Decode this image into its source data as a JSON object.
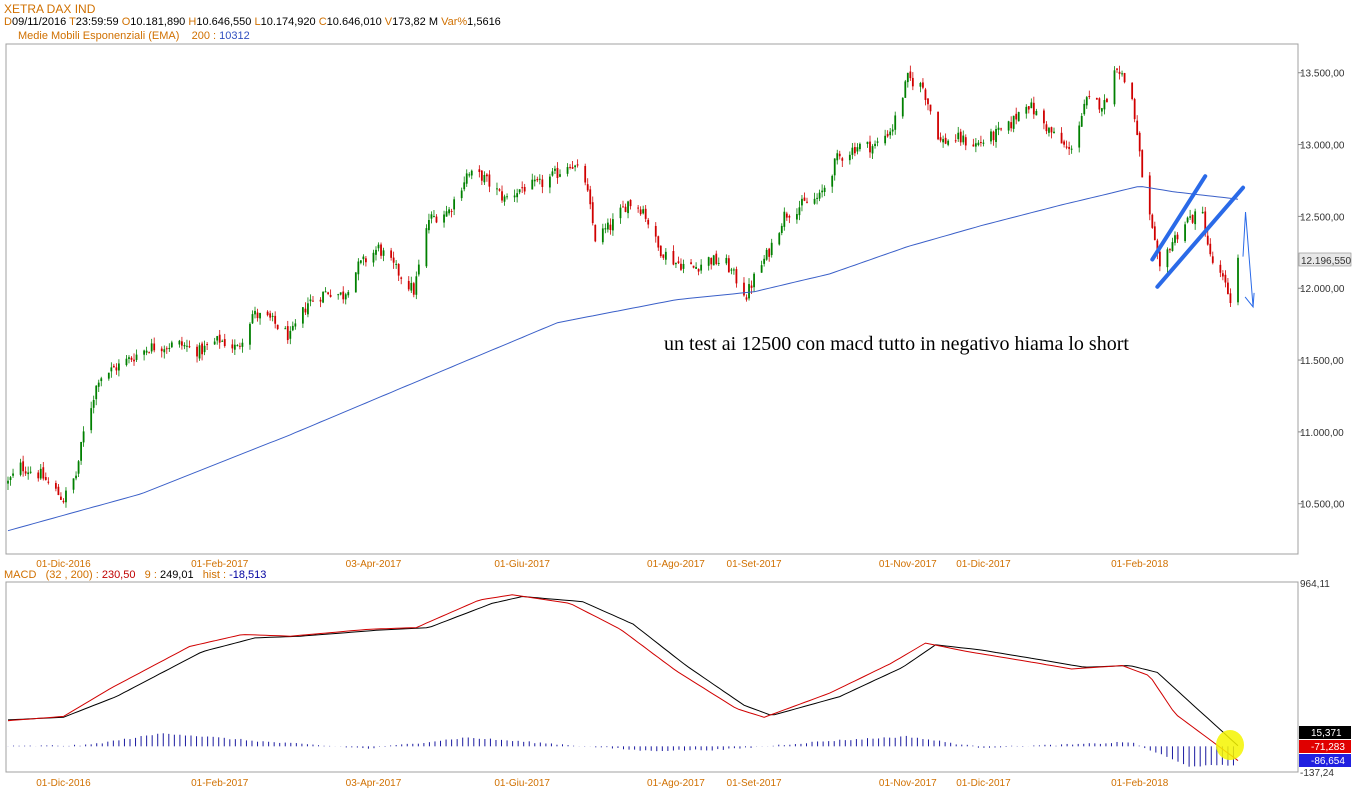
{
  "header": {
    "title": "XETRA DAX IND",
    "date_key": "D",
    "date": "09/11/2016",
    "time_key": "T",
    "time": "23:59:59",
    "open_key": "O",
    "open": "10.181,890",
    "high_key": "H",
    "high": "10.646,550",
    "low_key": "L",
    "low": "10.174,920",
    "close_key": "C",
    "close": "10.646,010",
    "vol_key": "V",
    "vol": "173,82 M",
    "var_key": "Var%",
    "var": "1,5616",
    "ema_name": "Medie Mobili Esponenziali (EMA)",
    "ema_period": "200 :",
    "ema_value": "10312"
  },
  "macd_header": {
    "name": "MACD",
    "params": "(32 , 200) :",
    "value": "230,50",
    "signal_label": "9 :",
    "signal": "249,01",
    "hist_label": "hist :",
    "hist": "-18,513"
  },
  "annotation": "un test ai 12500 con macd tutto in negativo hiama lo short",
  "colors": {
    "up": "#008000",
    "down": "#d00000",
    "ema": "#3a5fc8",
    "macd": "#d00000",
    "signal": "#000000",
    "hist": "#1a1aa0",
    "trend": "#2a6ae8",
    "orange": "#d07000",
    "highlight": "#f5f500"
  },
  "chart_data": [
    {
      "type": "candlestick",
      "title": "XETRA DAX IND",
      "ylim": [
        10150,
        13700
      ],
      "y_ticks": [
        "13.500,00",
        "13.000,00",
        "12.500,00",
        "12.000,00",
        "11.500,00",
        "11.000,00",
        "10.500,00"
      ],
      "y_tick_values": [
        13500,
        13000,
        12500,
        12000,
        11500,
        11000,
        10500
      ],
      "last_price_label": "12.196,550",
      "last_price": 12196.55,
      "x_ticks": [
        "01-Dic-2016",
        "01-Feb-2017",
        "03-Apr-2017",
        "01-Giu-2017",
        "01-Ago-2017",
        "01-Set-2017",
        "01-Nov-2017",
        "01-Dic-2017",
        "01-Feb-2018"
      ],
      "x_tick_dates": [
        "2016-12-01",
        "2017-02-01",
        "2017-04-03",
        "2017-06-01",
        "2017-08-01",
        "2017-09-01",
        "2017-11-01",
        "2017-12-01",
        "2018-02-01"
      ],
      "date_range": [
        "2016-11-09",
        "2018-03-12"
      ],
      "price_path": [
        [
          "2016-11-09",
          10646
        ],
        [
          "2016-11-14",
          10760
        ],
        [
          "2016-11-22",
          10700
        ],
        [
          "2016-12-01",
          10530
        ],
        [
          "2016-12-06",
          10700
        ],
        [
          "2016-12-09",
          10990
        ],
        [
          "2016-12-15",
          11380
        ],
        [
          "2016-12-22",
          11450
        ],
        [
          "2017-01-04",
          11590
        ],
        [
          "2017-01-16",
          11610
        ],
        [
          "2017-01-24",
          11560
        ],
        [
          "2017-02-01",
          11640
        ],
        [
          "2017-02-08",
          11580
        ],
        [
          "2017-02-14",
          11820
        ],
        [
          "2017-02-21",
          11780
        ],
        [
          "2017-03-01",
          11660
        ],
        [
          "2017-03-08",
          11900
        ],
        [
          "2017-03-16",
          11980
        ],
        [
          "2017-03-22",
          11950
        ],
        [
          "2017-03-28",
          12150
        ],
        [
          "2017-04-05",
          12280
        ],
        [
          "2017-04-10",
          12170
        ],
        [
          "2017-04-19",
          11980
        ],
        [
          "2017-04-25",
          12480
        ],
        [
          "2017-05-03",
          12540
        ],
        [
          "2017-05-10",
          12790
        ],
        [
          "2017-05-16",
          12780
        ],
        [
          "2017-05-25",
          12620
        ],
        [
          "2017-06-01",
          12700
        ],
        [
          "2017-06-08",
          12720
        ],
        [
          "2017-06-15",
          12800
        ],
        [
          "2017-06-20",
          12880
        ],
        [
          "2017-06-26",
          12750
        ],
        [
          "2017-06-30",
          12350
        ],
        [
          "2017-07-06",
          12430
        ],
        [
          "2017-07-13",
          12600
        ],
        [
          "2017-07-19",
          12550
        ],
        [
          "2017-07-25",
          12280
        ],
        [
          "2017-08-01",
          12180
        ],
        [
          "2017-08-08",
          12140
        ],
        [
          "2017-08-14",
          12200
        ],
        [
          "2017-08-21",
          12170
        ],
        [
          "2017-08-29",
          11950
        ],
        [
          "2017-09-01",
          12070
        ],
        [
          "2017-09-07",
          12260
        ],
        [
          "2017-09-13",
          12510
        ],
        [
          "2017-09-20",
          12580
        ],
        [
          "2017-09-27",
          12630
        ],
        [
          "2017-10-04",
          12900
        ],
        [
          "2017-10-12",
          12990
        ],
        [
          "2017-10-19",
          12990
        ],
        [
          "2017-10-26",
          13120
        ],
        [
          "2017-11-01",
          13460
        ],
        [
          "2017-11-07",
          13400
        ],
        [
          "2017-11-14",
          13020
        ],
        [
          "2017-11-21",
          13040
        ],
        [
          "2017-11-28",
          13000
        ],
        [
          "2017-12-04",
          13050
        ],
        [
          "2017-12-11",
          13120
        ],
        [
          "2017-12-18",
          13300
        ],
        [
          "2017-12-27",
          13100
        ],
        [
          "2018-01-04",
          12950
        ],
        [
          "2018-01-11",
          13300
        ],
        [
          "2018-01-18",
          13280
        ],
        [
          "2018-01-23",
          13560
        ],
        [
          "2018-01-29",
          13320
        ],
        [
          "2018-02-02",
          12790
        ],
        [
          "2018-02-06",
          12390
        ],
        [
          "2018-02-09",
          12110
        ],
        [
          "2018-02-13",
          12300
        ],
        [
          "2018-02-20",
          12480
        ],
        [
          "2018-02-26",
          12510
        ],
        [
          "2018-03-01",
          12210
        ],
        [
          "2018-03-06",
          12050
        ],
        [
          "2018-03-09",
          11930
        ],
        [
          "2018-03-12",
          12196
        ]
      ],
      "ema": {
        "name": "Medie Mobili Esponenziali (EMA)",
        "period": 200,
        "points": [
          [
            "2016-11-09",
            10312
          ],
          [
            "2017-01-01",
            10570
          ],
          [
            "2017-03-01",
            10980
          ],
          [
            "2017-05-01",
            11430
          ],
          [
            "2017-06-15",
            11760
          ],
          [
            "2017-08-01",
            11920
          ],
          [
            "2017-09-01",
            11975
          ],
          [
            "2017-10-01",
            12100
          ],
          [
            "2017-11-01",
            12290
          ],
          [
            "2017-12-01",
            12440
          ],
          [
            "2018-01-01",
            12580
          ],
          [
            "2018-02-01",
            12710
          ],
          [
            "2018-02-15",
            12670
          ],
          [
            "2018-03-12",
            12620
          ]
        ]
      },
      "trend_channel": {
        "upper": [
          [
            "2018-02-06",
            12200
          ],
          [
            "2018-02-27",
            12780
          ]
        ],
        "lower": [
          [
            "2018-02-08",
            12010
          ],
          [
            "2018-03-14",
            12700
          ]
        ]
      },
      "projection": [
        [
          "2018-03-12",
          12220
        ],
        [
          "2018-03-13",
          12530
        ],
        [
          "2018-03-16",
          11870
        ]
      ]
    },
    {
      "type": "line",
      "title": "MACD",
      "params": [
        32,
        200
      ],
      "signal_period": 9,
      "ylim": [
        -137.24,
        964.11
      ],
      "y_tick_top": "964,11",
      "y_tick_bottom": "-137,24",
      "labels": [
        "15,371",
        "-71,283",
        "-86,654"
      ],
      "series": [
        {
          "name": "MACD",
          "points": [
            [
              "2016-11-09",
              160
            ],
            [
              "2016-12-01",
              185
            ],
            [
              "2016-12-20",
              350
            ],
            [
              "2017-01-20",
              590
            ],
            [
              "2017-02-10",
              660
            ],
            [
              "2017-03-01",
              650
            ],
            [
              "2017-04-01",
              690
            ],
            [
              "2017-04-20",
              700
            ],
            [
              "2017-05-15",
              860
            ],
            [
              "2017-05-28",
              890
            ],
            [
              "2017-06-20",
              840
            ],
            [
              "2017-07-10",
              690
            ],
            [
              "2017-08-01",
              450
            ],
            [
              "2017-08-25",
              230
            ],
            [
              "2017-09-05",
              180
            ],
            [
              "2017-10-01",
              320
            ],
            [
              "2017-10-25",
              490
            ],
            [
              "2017-11-08",
              610
            ],
            [
              "2017-11-25",
              560
            ],
            [
              "2017-12-20",
              500
            ],
            [
              "2018-01-05",
              460
            ],
            [
              "2018-01-25",
              480
            ],
            [
              "2018-02-05",
              420
            ],
            [
              "2018-02-15",
              200
            ],
            [
              "2018-03-12",
              -71
            ]
          ]
        },
        {
          "name": "Signal",
          "points": [
            [
              "2016-11-09",
              165
            ],
            [
              "2016-12-01",
              180
            ],
            [
              "2016-12-22",
              300
            ],
            [
              "2017-01-25",
              560
            ],
            [
              "2017-02-15",
              640
            ],
            [
              "2017-03-05",
              650
            ],
            [
              "2017-04-05",
              685
            ],
            [
              "2017-04-25",
              700
            ],
            [
              "2017-05-20",
              840
            ],
            [
              "2017-06-01",
              880
            ],
            [
              "2017-06-25",
              850
            ],
            [
              "2017-07-15",
              720
            ],
            [
              "2017-08-05",
              480
            ],
            [
              "2017-08-28",
              250
            ],
            [
              "2017-09-08",
              190
            ],
            [
              "2017-10-05",
              300
            ],
            [
              "2017-10-30",
              470
            ],
            [
              "2017-11-12",
              600
            ],
            [
              "2017-11-30",
              570
            ],
            [
              "2017-12-25",
              510
            ],
            [
              "2018-01-10",
              470
            ],
            [
              "2018-01-28",
              480
            ],
            [
              "2018-02-08",
              440
            ],
            [
              "2018-02-20",
              280
            ],
            [
              "2018-03-12",
              15
            ]
          ]
        }
      ],
      "histogram_envelope": [
        [
          "2016-11-09",
          0
        ],
        [
          "2016-12-10",
          5
        ],
        [
          "2017-01-10",
          60
        ],
        [
          "2017-02-20",
          20
        ],
        [
          "2017-04-01",
          -10
        ],
        [
          "2017-05-10",
          40
        ],
        [
          "2017-06-15",
          10
        ],
        [
          "2017-07-20",
          -20
        ],
        [
          "2017-08-20",
          -15
        ],
        [
          "2017-10-01",
          25
        ],
        [
          "2017-11-01",
          45
        ],
        [
          "2017-11-30",
          -5
        ],
        [
          "2018-01-10",
          10
        ],
        [
          "2018-01-28",
          20
        ],
        [
          "2018-02-10",
          -40
        ],
        [
          "2018-02-20",
          -90
        ],
        [
          "2018-03-12",
          -86
        ]
      ]
    }
  ]
}
